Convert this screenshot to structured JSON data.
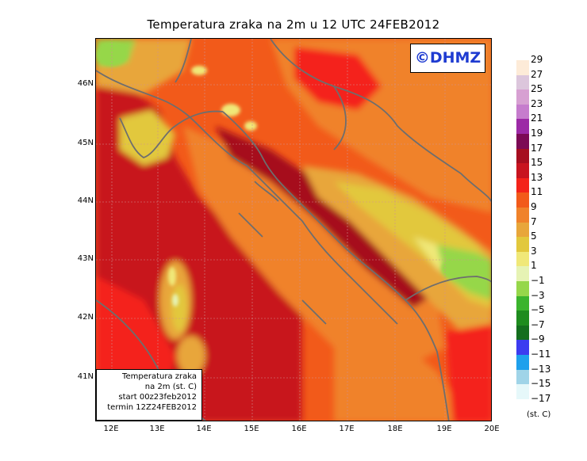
{
  "title": "Temperatura zraka na 2m u 12 UTC 24FEB2012",
  "logo_text": "©DHMZ",
  "info": {
    "line1": "Temperatura zraka",
    "line2": "na 2m (st. C)",
    "line3": "start 00z23feb2012",
    "line4": "termin 12Z24FEB2012"
  },
  "lat_labels": [
    "46N",
    "45N",
    "44N",
    "43N",
    "42N",
    "41N"
  ],
  "lon_labels": [
    "12E",
    "13E",
    "14E",
    "15E",
    "16E",
    "17E",
    "18E",
    "19E",
    "20E"
  ],
  "legend": {
    "labels": [
      "29",
      "27",
      "25",
      "23",
      "21",
      "19",
      "17",
      "15",
      "13",
      "11",
      "9",
      "7",
      "5",
      "3",
      "1",
      "−1",
      "−3",
      "−5",
      "−7",
      "−9",
      "−11",
      "−13",
      "−15",
      "−17"
    ],
    "colors": [
      "#fdebd8",
      "#dcc6dc",
      "#d7a0d2",
      "#c67ccd",
      "#9c2aa6",
      "#7c0a55",
      "#a60e1f",
      "#c8141f",
      "#f4231a",
      "#f25a1a",
      "#f0822a",
      "#e8a63a",
      "#e2c83c",
      "#f0e878",
      "#e6f3b4",
      "#96d74a",
      "#3bb42d",
      "#1e8c1e",
      "#146e1e",
      "#3c3cf0",
      "#1ea0ec",
      "#a0d4e8",
      "#e6f8fa",
      "#ffffff"
    ],
    "unit": "(st. C)"
  }
}
